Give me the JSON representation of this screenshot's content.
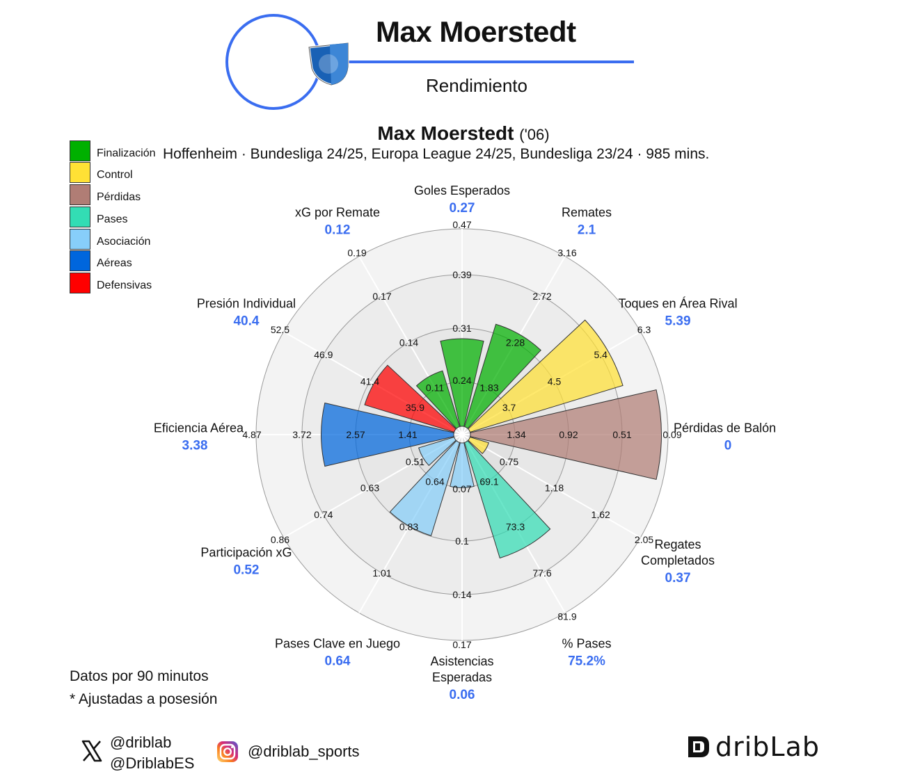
{
  "header": {
    "player_name": "Max Moerstedt",
    "subtitle": "Rendimiento"
  },
  "chart_title": {
    "name": "Max Moerstedt",
    "year": "('06)"
  },
  "chart_subtitle": "Hoffenheim · Bundesliga 24/25, Europa League 24/25, Bundesliga 23/24 · 985 mins.",
  "legend": [
    {
      "label": "Finalización",
      "color": "#00b000"
    },
    {
      "label": "Control",
      "color": "#ffe135"
    },
    {
      "label": "Pérdidas",
      "color": "#b07d75"
    },
    {
      "label": "Pases",
      "color": "#33ddb4"
    },
    {
      "label": "Asociación",
      "color": "#87cefa"
    },
    {
      "label": "Aéreas",
      "color": "#0066dd"
    },
    {
      "label": "Defensivas",
      "color": "#ff0000"
    }
  ],
  "notes": {
    "line1": "Datos por 90 minutos",
    "line2": "* Ajustadas a posesión"
  },
  "social": {
    "x_handle_1": "@driblab",
    "x_handle_2": "@DriblabES",
    "instagram_handle": "@driblab_sports",
    "brand": "dribLab"
  },
  "icons": {
    "x": "x-logo-icon",
    "instagram": "instagram-icon",
    "brand_logo": "driblab-logo",
    "club_crest": "hoffenheim-crest"
  },
  "chart_data": {
    "type": "polar-bar",
    "ring_count": 4,
    "metrics": [
      {
        "label": "Goles Esperados",
        "value": "0.27",
        "fill": 0.45,
        "category": 0,
        "ticks": [
          "0.24",
          "0.31",
          "0.39",
          "0.47"
        ]
      },
      {
        "label": "Remates",
        "value": "2.1",
        "fill": 0.55,
        "category": 0,
        "ticks": [
          "1.83",
          "2.28",
          "2.72",
          "3.16"
        ]
      },
      {
        "label": "Toques en Área Rival",
        "value": "5.39",
        "fill": 0.82,
        "category": 1,
        "ticks": [
          "3.7",
          "4.5",
          "5.4",
          "6.3"
        ]
      },
      {
        "label": "Pérdidas de Balón",
        "value": "0",
        "fill": 0.98,
        "category": 2,
        "ticks": [
          "1.34",
          "0.92",
          "0.51",
          "0.09"
        ]
      },
      {
        "label": "Regates Completados",
        "value": "0.37",
        "fill": 0.1,
        "category": 1,
        "ticks": [
          "0.75",
          "1.18",
          "1.62",
          "2.05"
        ]
      },
      {
        "label": "% Pases",
        "value": "75.2%",
        "fill": 0.62,
        "category": 3,
        "ticks": [
          "69.1",
          "73.3",
          "77.6",
          "81.9"
        ]
      },
      {
        "label": "Asistencias Esperadas",
        "value": "0.06",
        "fill": 0.23,
        "category": 4,
        "ticks": [
          "0.07",
          "0.1",
          "0.14",
          "0.17"
        ]
      },
      {
        "label": "Pases Clave en Juego",
        "value": "0.64",
        "fill": 0.5,
        "category": 4,
        "ticks": [
          "0.64",
          "0.83",
          "1.01",
          ""
        ]
      },
      {
        "label": "Participación xG",
        "value": "0.52",
        "fill": 0.19,
        "category": 4,
        "ticks": [
          "0.51",
          "0.63",
          "0.74",
          "0.86"
        ]
      },
      {
        "label": "Eficiencia Aérea",
        "value": "3.38",
        "fill": 0.68,
        "category": 5,
        "ticks": [
          "1.41",
          "2.57",
          "3.72",
          "4.87"
        ]
      },
      {
        "label": "Presión Individual",
        "value": "40.4",
        "fill": 0.48,
        "category": 6,
        "ticks": [
          "35.9",
          "41.4",
          "46.9",
          "52.5"
        ]
      },
      {
        "label": "xG por Remate",
        "value": "0.12",
        "fill": 0.3,
        "category": 0,
        "ticks": [
          "0.11",
          "0.14",
          "0.17",
          "0.19"
        ]
      }
    ]
  }
}
